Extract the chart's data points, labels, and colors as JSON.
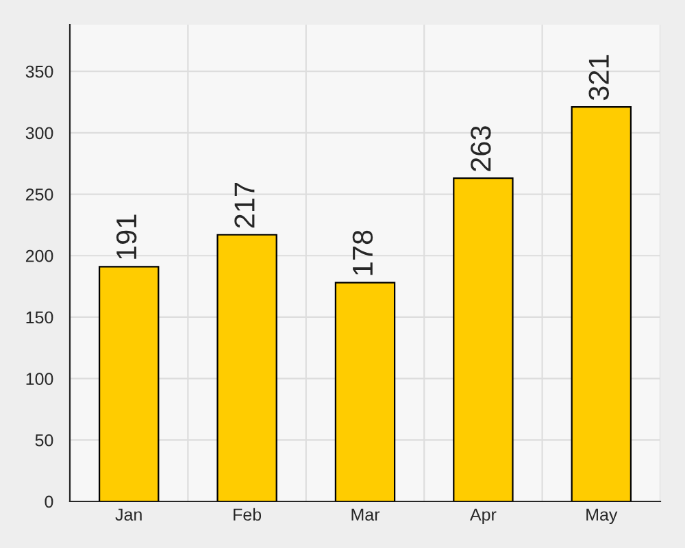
{
  "chart_data": {
    "type": "bar",
    "categories": [
      "Jan",
      "Feb",
      "Mar",
      "Apr",
      "May"
    ],
    "values": [
      191,
      217,
      178,
      263,
      321
    ],
    "color": "#ffcc00",
    "ylim": [
      0,
      388
    ],
    "yticks": [
      0,
      50,
      100,
      150,
      200,
      250,
      300,
      350
    ],
    "grid": true,
    "data_labels": true
  }
}
